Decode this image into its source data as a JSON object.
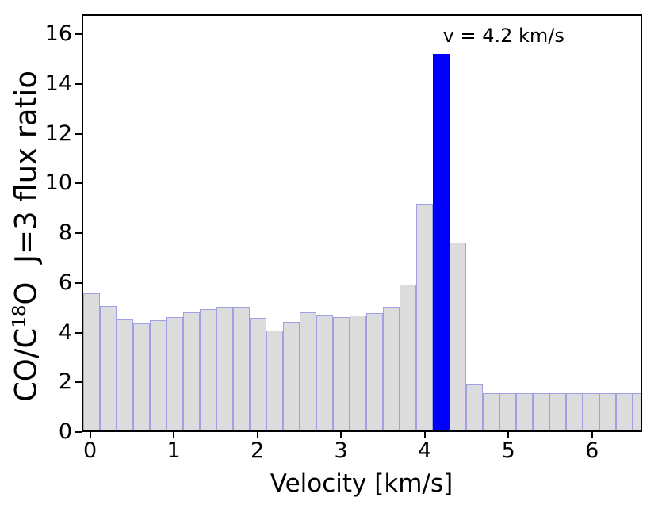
{
  "figure": {
    "xlabel": "Velocity [km/s]",
    "ylabel": {
      "prefix": "CO/C",
      "sup": "18",
      "suffix": "O  J=3 flux ratio"
    },
    "annotation": "v = 4.2 km/s",
    "background": "#ffffff"
  },
  "chart_data": {
    "type": "bar",
    "title": "",
    "xlabel": "Velocity [km/s]",
    "ylabel": "CO/C^18O J=3 flux ratio",
    "x_units": "km/s",
    "bin_width": 0.2,
    "x": [
      0.0,
      0.2,
      0.4,
      0.6,
      0.8,
      1.0,
      1.2,
      1.4,
      1.6,
      1.8,
      2.0,
      2.2,
      2.4,
      2.6,
      2.8,
      3.0,
      3.2,
      3.4,
      3.6,
      3.8,
      4.0,
      4.2,
      4.4,
      4.6,
      4.8,
      5.0,
      5.2,
      5.4,
      5.6,
      5.8,
      6.0,
      6.2,
      6.4,
      6.6
    ],
    "values": [
      5.55,
      5.05,
      4.5,
      4.35,
      4.45,
      4.6,
      4.8,
      4.9,
      5.0,
      5.0,
      4.55,
      4.05,
      4.4,
      4.8,
      4.7,
      4.6,
      4.65,
      4.75,
      5.0,
      5.9,
      9.2,
      15.25,
      7.6,
      1.85,
      1.5,
      1.5,
      1.5,
      1.5,
      1.5,
      1.5,
      1.5,
      1.5,
      1.5,
      1.5
    ],
    "highlight": {
      "x": 4.2,
      "value": 15.25,
      "label": "v = 4.2 km/s",
      "color": "#0000ff"
    },
    "bar_fill": "#dcdcdc",
    "bar_edge": "#a0a0e6",
    "axis_color": "#000000",
    "xlim": [
      -0.1,
      6.6
    ],
    "ylim": [
      0,
      16.8
    ],
    "x_ticks": [
      0,
      1,
      2,
      3,
      4,
      5,
      6
    ],
    "y_ticks": [
      0,
      2,
      4,
      6,
      8,
      10,
      12,
      14,
      16
    ],
    "grid": false,
    "legend": null
  }
}
